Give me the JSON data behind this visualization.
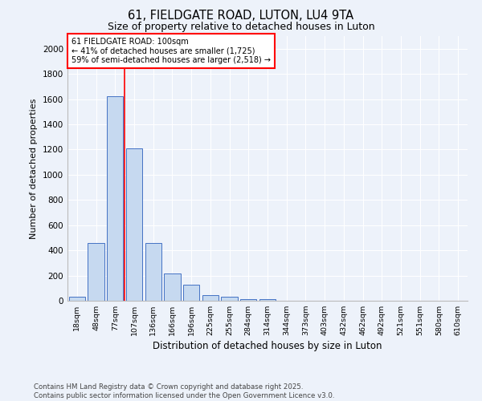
{
  "title_line1": "61, FIELDGATE ROAD, LUTON, LU4 9TA",
  "title_line2": "Size of property relative to detached houses in Luton",
  "xlabel": "Distribution of detached houses by size in Luton",
  "ylabel": "Number of detached properties",
  "categories": [
    "18sqm",
    "48sqm",
    "77sqm",
    "107sqm",
    "136sqm",
    "166sqm",
    "196sqm",
    "225sqm",
    "255sqm",
    "284sqm",
    "314sqm",
    "344sqm",
    "373sqm",
    "403sqm",
    "432sqm",
    "462sqm",
    "492sqm",
    "521sqm",
    "551sqm",
    "580sqm",
    "610sqm"
  ],
  "values": [
    35,
    460,
    1625,
    1210,
    460,
    215,
    125,
    45,
    30,
    15,
    10,
    0,
    0,
    0,
    0,
    0,
    0,
    0,
    0,
    0,
    0
  ],
  "bar_color": "#c6d9f0",
  "bar_edge_color": "#4472c4",
  "marker_index": 3,
  "annotation_text_line1": "61 FIELDGATE ROAD: 100sqm",
  "annotation_text_line2": "← 41% of detached houses are smaller (1,725)",
  "annotation_text_line3": "59% of semi-detached houses are larger (2,518) →",
  "footer_line1": "Contains HM Land Registry data © Crown copyright and database right 2025.",
  "footer_line2": "Contains public sector information licensed under the Open Government Licence v3.0.",
  "background_color": "#edf2fa",
  "axes_bg_color": "#edf2fa",
  "ylim": [
    0,
    2100
  ],
  "yticks": [
    0,
    200,
    400,
    600,
    800,
    1000,
    1200,
    1400,
    1600,
    1800,
    2000
  ]
}
